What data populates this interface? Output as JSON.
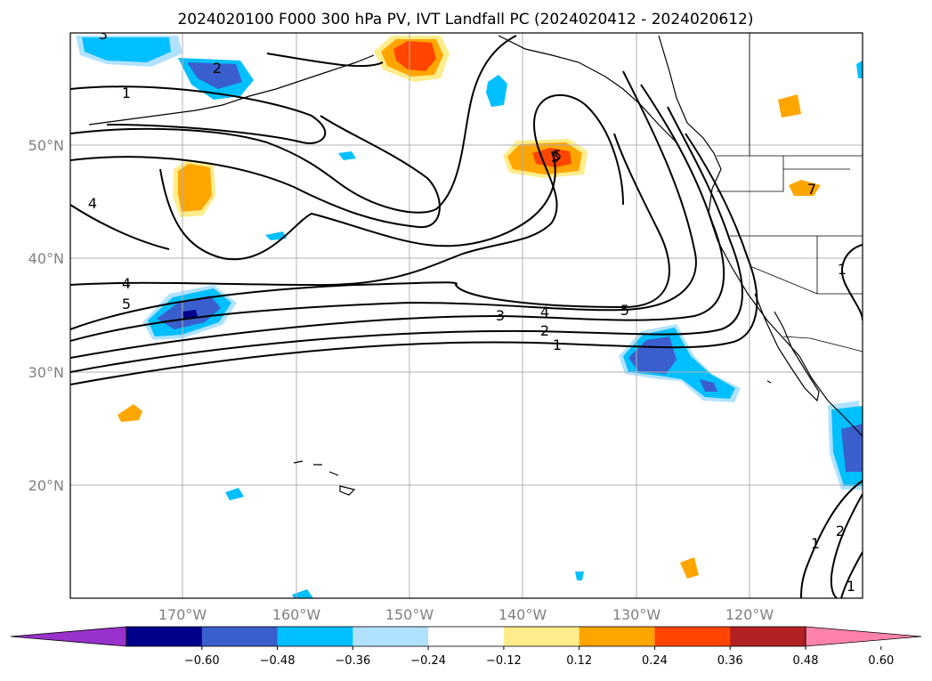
{
  "title": "2024020100 F000 300 hPa PV, IVT Landfall PC (2024020412 - 2024020612)",
  "lon_labels": [
    "170°W",
    "160°W",
    "150°W",
    "140°W",
    "130°W",
    "120°W"
  ],
  "lat_labels": [
    "50°N",
    "40°N",
    "30°N",
    "20°N"
  ],
  "colorbar": {
    "ticks": [
      "−0.60",
      "−0.48",
      "−0.36",
      "−0.24",
      "−0.12",
      "0.12",
      "0.24",
      "0.36",
      "0.48",
      "0.60"
    ],
    "colors": [
      "#9932cc",
      "#00008b",
      "#3a5fcd",
      "#00bfff",
      "#b0e2ff",
      "#ffffff",
      "#ffec8b",
      "#ffa500",
      "#ff4500",
      "#b22222",
      "#ff82ab"
    ]
  },
  "contour_labels": [
    "1",
    "2",
    "3",
    "4",
    "5",
    "4",
    "5",
    "3",
    "4",
    "5",
    "2",
    "1",
    "5",
    "1",
    "1",
    "2",
    "1",
    "7"
  ],
  "palette": {
    "shade_pos_light": "#ffec8b",
    "shade_pos_mid": "#ffa500",
    "shade_pos_strong": "#ff4500",
    "shade_neg_light": "#b0e2ff",
    "shade_neg_mid": "#00bfff",
    "shade_neg_strong": "#3a5fcd",
    "shade_neg_max": "#00008b",
    "grid": "#b0b0b0",
    "axis_text": "#808080"
  }
}
